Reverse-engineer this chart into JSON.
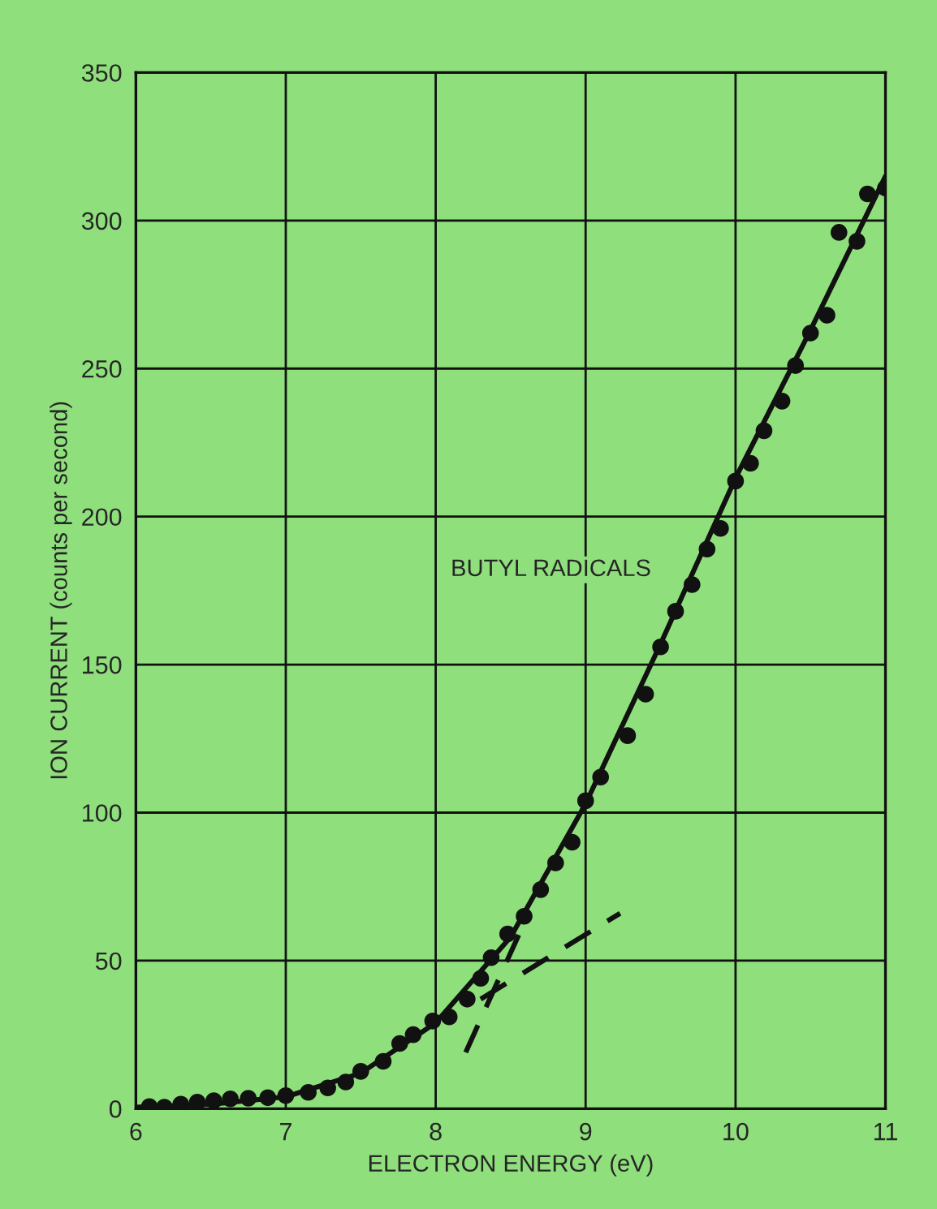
{
  "chart_data": {
    "type": "scatter",
    "xlabel": "ELECTRON ENERGY (eV)",
    "ylabel": "ION CURRENT (counts per second)",
    "xlim": [
      6,
      11
    ],
    "ylim": [
      0,
      350
    ],
    "xticks": [
      6,
      7,
      8,
      9,
      10,
      11
    ],
    "yticks": [
      0,
      50,
      100,
      150,
      200,
      250,
      300,
      350
    ],
    "grid": true,
    "marker": "circle",
    "annotations": [
      "BUTYL RADICALS"
    ],
    "series": [
      {
        "color": "#111111",
        "x": [
          6.09,
          6.19,
          6.3,
          6.41,
          6.52,
          6.63,
          6.75,
          6.88,
          7.0,
          7.15,
          7.28,
          7.4,
          7.5,
          7.65,
          7.76,
          7.85,
          7.98,
          8.09,
          8.21,
          8.3,
          8.37,
          8.48,
          8.59,
          8.7,
          8.8,
          8.91,
          9.0,
          9.1,
          9.28,
          9.4,
          9.5,
          9.6,
          9.71,
          9.81,
          9.9,
          10.0,
          10.1,
          10.19,
          10.31,
          10.4,
          10.5,
          10.61,
          10.69,
          10.81,
          10.88,
          11.0
        ],
        "values": [
          0.7,
          0.5,
          1.5,
          2.2,
          2.7,
          3.3,
          3.5,
          3.7,
          4.4,
          5.5,
          7,
          9,
          12.6,
          16,
          22,
          25,
          29.6,
          31,
          37,
          44,
          51,
          59,
          65,
          74,
          83,
          90,
          104,
          112,
          126,
          140,
          156,
          168,
          177,
          189,
          196,
          212,
          218,
          229,
          239,
          251,
          262,
          268,
          296,
          293,
          309,
          311
        ]
      },
      {
        "type": "line",
        "color": "#111111",
        "line_style": "solid",
        "marker": "none",
        "x": [
          6.0,
          6.5,
          7.0,
          7.5,
          8.0,
          8.5,
          9.0,
          9.5,
          10.0,
          10.5,
          11.0
        ],
        "values": [
          0.5,
          1.5,
          4,
          12,
          29,
          58,
          103,
          157,
          213,
          263,
          315
        ]
      },
      {
        "type": "line",
        "color": "#111111",
        "line_style": "dashed",
        "marker": "none",
        "x": [
          8.2,
          8.61
        ],
        "values": [
          19,
          65
        ]
      },
      {
        "type": "line",
        "color": "#111111",
        "line_style": "dashed",
        "marker": "none",
        "x": [
          8.3,
          9.23
        ],
        "values": [
          37,
          66
        ]
      }
    ]
  }
}
